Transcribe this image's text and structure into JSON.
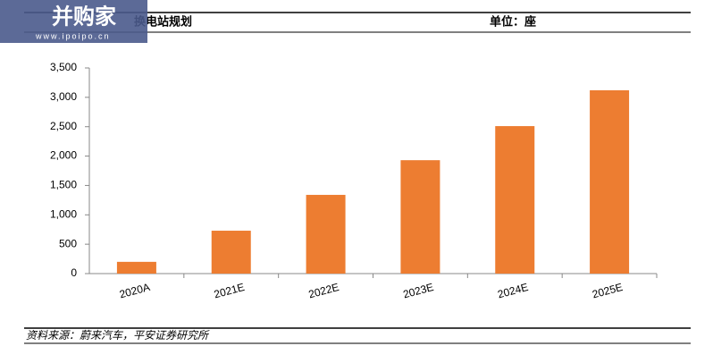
{
  "watermark": {
    "brand": "并购家",
    "url": "www.ipoipo.cn"
  },
  "chart_data": {
    "type": "bar",
    "title": "换电站规划",
    "unit": "单位：座",
    "source": "资料来源：蔚来汽车，平安证券研究所",
    "categories": [
      "2020A",
      "2021E",
      "2022E",
      "2023E",
      "2024E",
      "2025E"
    ],
    "values": [
      200,
      730,
      1340,
      1930,
      2510,
      3120
    ],
    "color": "#ed7d31",
    "ylim": [
      0,
      3500
    ],
    "yticks": [
      0,
      500,
      {
        "value": 1000,
        "label": "1,000"
      },
      {
        "value": 1500,
        "label": "1,500"
      },
      {
        "value": 2000,
        "label": "2,000"
      },
      {
        "value": 2500,
        "label": "2,500"
      },
      {
        "value": 3000,
        "label": "3,000"
      },
      {
        "value": 3500,
        "label": "3,500"
      }
    ]
  }
}
